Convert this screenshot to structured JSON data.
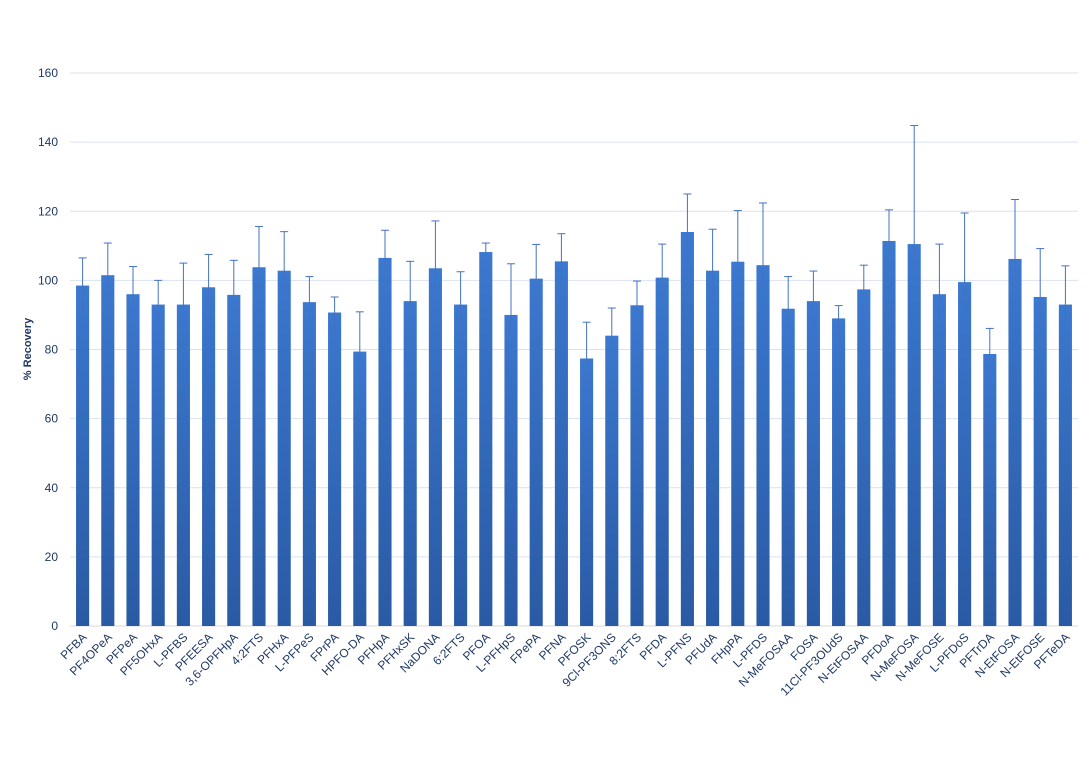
{
  "chart_data": {
    "type": "bar",
    "title": "",
    "xlabel": "",
    "ylabel": "% Recovery",
    "ylim": [
      0,
      160
    ],
    "yticks": [
      0,
      20,
      40,
      60,
      80,
      100,
      120,
      140,
      160
    ],
    "grid": true,
    "legend": "none",
    "bar_color": "#2f64b5",
    "categories": [
      "PFBA",
      "PF4OPeA",
      "PFPeA",
      "PF5OHxA",
      "L-PFBS",
      "PFEESA",
      "3,6-OPFHpA",
      "4:2FTS",
      "PFHxA",
      "L-PFPeS",
      "FPrPA",
      "HPFO-DA",
      "PFHpA",
      "PFHxSK",
      "NaDONA",
      "6:2FTS",
      "PFOA",
      "L-PFHpS",
      "FPePA",
      "PFNA",
      "PFOSK",
      "9Cl-PF3ONS",
      "8:2FTS",
      "PFDA",
      "L-PFNS",
      "PFUdA",
      "FHpPA",
      "L-PFDS",
      "N-MeFOSAA",
      "FOSA",
      "11Cl-PF3OUdS",
      "N-EtFOSAA",
      "PFDoA",
      "N-MeFOSA",
      "N-MeFOSE",
      "L-PFDoS",
      "PFTrDA",
      "N-EtFOSA",
      "N-EtFOSE",
      "PFTeDA"
    ],
    "series": [
      {
        "values": [
          98.5,
          101.5,
          96,
          93,
          93,
          98,
          95.8,
          103.8,
          102.8,
          93.7,
          90.7,
          79.4,
          106.5,
          94,
          103.5,
          93,
          108.2,
          90,
          100.5,
          105.5,
          77.4,
          84,
          92.8,
          100.8,
          114,
          102.8,
          105.4,
          104.4,
          91.8,
          94,
          89,
          97.4,
          111.4,
          110.5,
          96,
          99.5,
          78.7,
          106.2,
          95.2,
          93
        ],
        "error": [
          8,
          9.3,
          8,
          7,
          12,
          9.5,
          10,
          11.8,
          11.3,
          7.4,
          4.5,
          11.5,
          8,
          11.5,
          13.7,
          9.5,
          2.6,
          14.8,
          9.9,
          8,
          10.5,
          8,
          7,
          9.7,
          11,
          12,
          14.8,
          18,
          9.3,
          8.7,
          3.7,
          7,
          9,
          34.3,
          14.5,
          20,
          7.4,
          17.2,
          14,
          11.2
        ]
      }
    ]
  }
}
